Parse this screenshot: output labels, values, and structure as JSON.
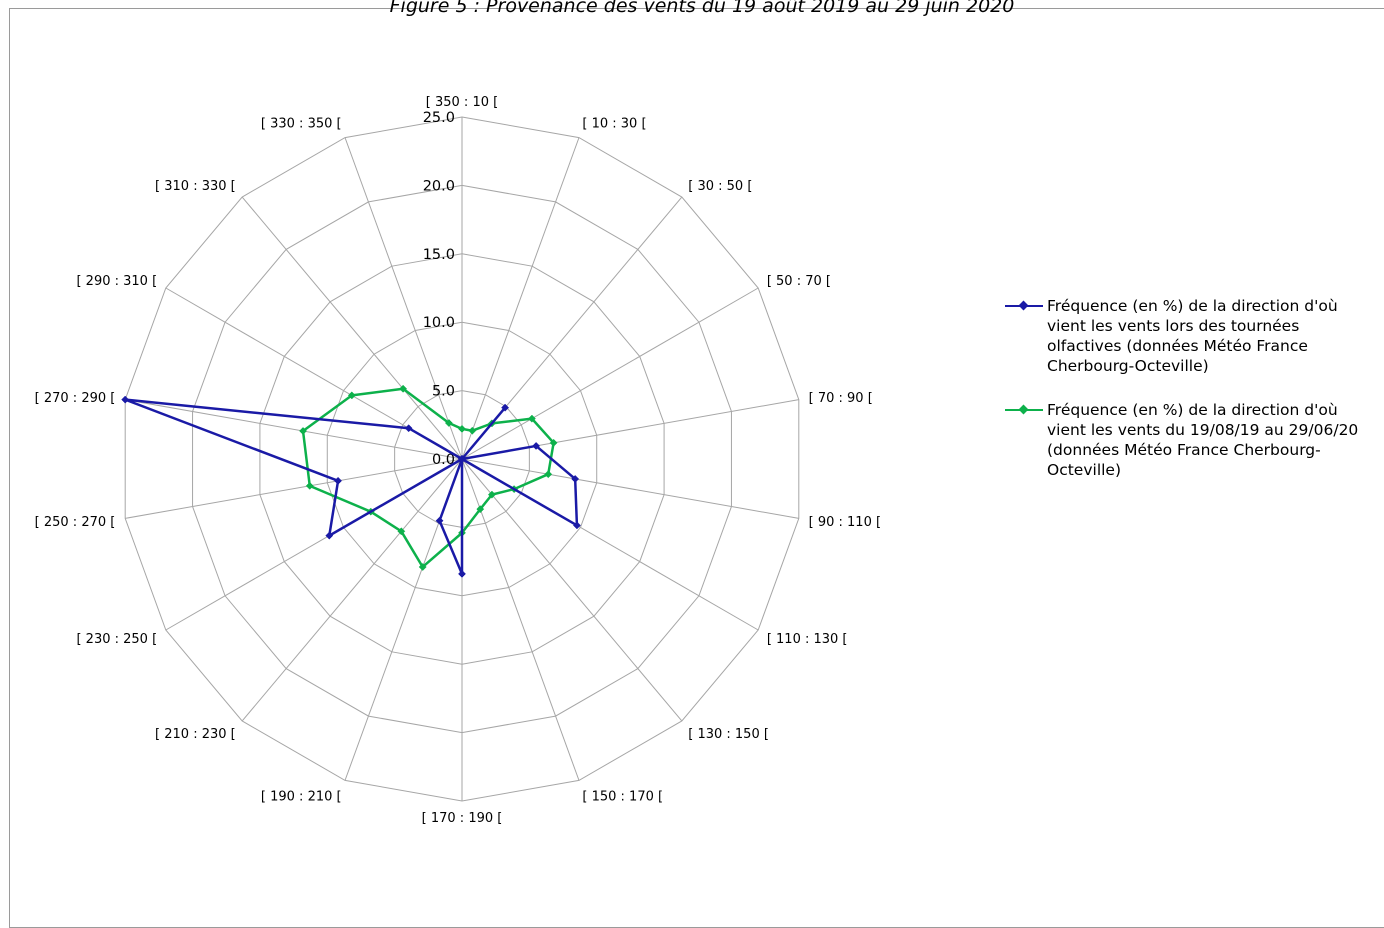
{
  "chart_data": {
    "type": "radar",
    "title": "Figure 5 : Provenance des vents du 19 août 2019 au 29 juin 2020",
    "categories": [
      "[ 350 : 10 [",
      "[ 10 : 30 [",
      "[ 30 : 50 [",
      "[ 50 : 70 [",
      "[ 70 : 90 [",
      "[ 90 : 110 [",
      "[ 110 : 130 [",
      "[ 130 : 150 [",
      "[ 150 : 170 [",
      "[ 170 : 190 [",
      "[ 190 : 210 [",
      "[ 210 : 230 [",
      "[ 230 : 250 [",
      "[ 250 : 270 [",
      "[ 270 : 290 [",
      "[ 290 : 310 [",
      "[ 310 : 330 [",
      "[ 330 : 350 ["
    ],
    "ticks": [
      "0.0",
      "5.0",
      "10.0",
      "15.0",
      "20.0",
      "25.0"
    ],
    "rmax": 25,
    "grid": true,
    "legend_position": "right",
    "series": [
      {
        "name": "Fréquence (en %) de la direction d'où vient les vents lors des tournées olfactives (données Météo France Cherbourg-Octeville)",
        "color": "#1a1aa6",
        "values": [
          0.0,
          0.0,
          4.9,
          0.0,
          5.5,
          8.4,
          9.7,
          0.0,
          0.0,
          8.4,
          4.8,
          0.0,
          11.2,
          9.2,
          25.0,
          4.5,
          0.0,
          0.0
        ]
      },
      {
        "name": "Fréquence (en %) de la direction d'où vient les vents du 19/08/19 au 29/06/20  (données Météo France Cherbourg-Octeville)",
        "color": "#0db14b",
        "values": [
          2.2,
          2.2,
          3.4,
          5.9,
          6.8,
          6.4,
          4.4,
          3.4,
          3.9,
          5.4,
          8.4,
          6.9,
          7.7,
          11.3,
          11.8,
          9.3,
          6.7,
          2.8
        ]
      }
    ]
  }
}
